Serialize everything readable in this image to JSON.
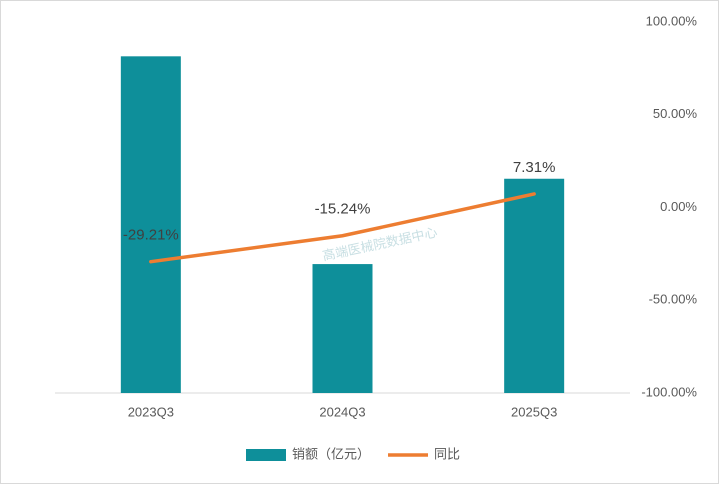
{
  "chart_data": {
    "type": "bar_line",
    "categories": [
      "2023Q3",
      "2024Q3",
      "2025Q3"
    ],
    "series": [
      {
        "name": "销额（亿元）",
        "type": "bar",
        "color": "#0e8f9a",
        "values": [
          36.3,
          13.9,
          23.1
        ]
      },
      {
        "name": "同比",
        "type": "line",
        "axis": "y2",
        "color": "#ed7d31",
        "values": [
          -29.21,
          -15.24,
          7.31
        ],
        "value_labels": [
          "-29.21%",
          "-15.24%",
          "7.31%"
        ]
      }
    ],
    "ylim": [
      0,
      40
    ],
    "y2lim": [
      -100,
      100
    ],
    "y2ticks": [
      {
        "value": 100,
        "label": "100.00%"
      },
      {
        "value": 50,
        "label": "50.00%"
      },
      {
        "value": 0,
        "label": "0.00%"
      },
      {
        "value": -50,
        "label": "-50.00%"
      },
      {
        "value": -100,
        "label": "-100.00%"
      }
    ],
    "watermark": "高端医械院数据中心",
    "legend": "bottom"
  }
}
